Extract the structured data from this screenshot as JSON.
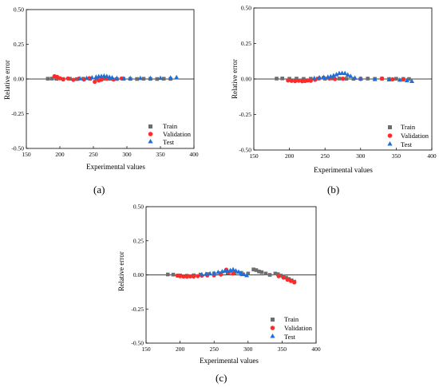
{
  "chart_data": [
    {
      "type": "scatter",
      "panel_label": "(a)",
      "xlabel": "Experimental values",
      "ylabel": "Relative error",
      "xlim": [
        150,
        400
      ],
      "ylim": [
        -0.5,
        0.5
      ],
      "xticks": [
        "150",
        "200",
        "250",
        "300",
        "350",
        "400"
      ],
      "yticks": [
        "-0.50",
        "-0.25",
        "0.00",
        "0.25",
        "0.50"
      ],
      "reference_line": 0,
      "legend_position": "bottom-right",
      "series": [
        {
          "name": "Train",
          "color": "#6d6d6d",
          "marker": "square",
          "points": [
            [
              182,
              0.002
            ],
            [
              188,
              0.003
            ],
            [
              195,
              0.001
            ],
            [
              205,
              0.0
            ],
            [
              215,
              0.002
            ],
            [
              225,
              -0.001
            ],
            [
              235,
              0.002
            ],
            [
              245,
              0.001
            ],
            [
              255,
              0.003
            ],
            [
              265,
              0.002
            ],
            [
              275,
              0.001
            ],
            [
              285,
              0.0
            ],
            [
              295,
              0.002
            ],
            [
              305,
              0.001
            ],
            [
              315,
              0.0
            ],
            [
              325,
              0.002
            ],
            [
              335,
              0.001
            ],
            [
              345,
              0.0
            ],
            [
              355,
              0.002
            ],
            [
              365,
              0.001
            ]
          ]
        },
        {
          "name": "Validation",
          "color": "#ff2a2a",
          "marker": "circle",
          "points": [
            [
              192,
              0.02
            ],
            [
              196,
              0.015
            ],
            [
              200,
              0.005
            ],
            [
              205,
              -0.003
            ],
            [
              212,
              0.004
            ],
            [
              220,
              -0.006
            ],
            [
              228,
              0.002
            ],
            [
              236,
              -0.004
            ],
            [
              244,
              0.006
            ],
            [
              252,
              -0.02
            ],
            [
              258,
              -0.01
            ],
            [
              262,
              -0.005
            ],
            [
              270,
              0.002
            ],
            [
              280,
              -0.004
            ],
            [
              292,
              0.004
            ]
          ]
        },
        {
          "name": "Test",
          "color": "#1e6fd9",
          "marker": "triangle",
          "points": [
            [
              230,
              0.004
            ],
            [
              240,
              0.006
            ],
            [
              248,
              0.01
            ],
            [
              254,
              0.015
            ],
            [
              258,
              0.018
            ],
            [
              262,
              0.02
            ],
            [
              266,
              0.022
            ],
            [
              270,
              0.02
            ],
            [
              274,
              0.014
            ],
            [
              278,
              0.01
            ],
            [
              285,
              0.006
            ],
            [
              295,
              0.004
            ],
            [
              305,
              0.005
            ],
            [
              320,
              0.006
            ],
            [
              335,
              0.006
            ],
            [
              350,
              0.007
            ],
            [
              365,
              0.009
            ],
            [
              374,
              0.012
            ]
          ]
        }
      ]
    },
    {
      "type": "scatter",
      "panel_label": "(b)",
      "xlabel": "Experimental values",
      "ylabel": "Relative error",
      "xlim": [
        150,
        400
      ],
      "ylim": [
        -0.5,
        0.5
      ],
      "xticks": [
        "150",
        "200",
        "250",
        "300",
        "350",
        "400"
      ],
      "yticks": [
        "-0.50",
        "-0.25",
        "0.00",
        "0.25",
        "0.50"
      ],
      "reference_line": 0,
      "legend_position": "bottom-right",
      "series": [
        {
          "name": "Train",
          "color": "#6d6d6d",
          "marker": "square",
          "points": [
            [
              182,
              0.003
            ],
            [
              190,
              0.004
            ],
            [
              200,
              0.002
            ],
            [
              210,
              0.003
            ],
            [
              220,
              0.001
            ],
            [
              230,
              0.002
            ],
            [
              240,
              0.003
            ],
            [
              250,
              0.002
            ],
            [
              260,
              0.004
            ],
            [
              270,
              0.003
            ],
            [
              280,
              0.002
            ],
            [
              290,
              0.001
            ],
            [
              300,
              0.002
            ],
            [
              310,
              0.003
            ],
            [
              320,
              0.001
            ],
            [
              330,
              0.002
            ],
            [
              340,
              0.0
            ],
            [
              350,
              0.002
            ],
            [
              360,
              0.001
            ],
            [
              368,
              0.0
            ]
          ]
        },
        {
          "name": "Validation",
          "color": "#ff2a2a",
          "marker": "circle",
          "points": [
            [
              198,
              -0.01
            ],
            [
              203,
              -0.013
            ],
            [
              208,
              -0.015
            ],
            [
              213,
              -0.012
            ],
            [
              218,
              -0.016
            ],
            [
              222,
              -0.014
            ],
            [
              226,
              -0.01
            ],
            [
              230,
              -0.012
            ],
            [
              236,
              -0.006
            ],
            [
              242,
              0.005
            ],
            [
              248,
              0.01
            ],
            [
              256,
              0.004
            ],
            [
              264,
              0.0
            ],
            [
              275,
              0.002
            ],
            [
              300,
              0.0
            ],
            [
              330,
              0.004
            ],
            [
              345,
              -0.002
            ],
            [
              360,
              -0.004
            ]
          ]
        },
        {
          "name": "Test",
          "color": "#1e6fd9",
          "marker": "triangle",
          "points": [
            [
              235,
              0.006
            ],
            [
              242,
              0.01
            ],
            [
              248,
              0.012
            ],
            [
              254,
              0.014
            ],
            [
              258,
              0.018
            ],
            [
              262,
              0.025
            ],
            [
              266,
              0.032
            ],
            [
              270,
              0.04
            ],
            [
              274,
              0.042
            ],
            [
              278,
              0.04
            ],
            [
              282,
              0.03
            ],
            [
              286,
              0.02
            ],
            [
              292,
              0.008
            ],
            [
              300,
              0.003
            ],
            [
              320,
              -0.002
            ],
            [
              340,
              -0.004
            ],
            [
              355,
              -0.006
            ],
            [
              365,
              -0.01
            ],
            [
              372,
              -0.015
            ]
          ]
        }
      ]
    },
    {
      "type": "scatter",
      "panel_label": "(c)",
      "xlabel": "Experimental values",
      "ylabel": "Relative error",
      "xlim": [
        150,
        400
      ],
      "ylim": [
        -0.5,
        0.5
      ],
      "xticks": [
        "150",
        "200",
        "250",
        "300",
        "350",
        "400"
      ],
      "yticks": [
        "-0.50",
        "-0.25",
        "0.00",
        "0.25",
        "0.50"
      ],
      "reference_line": 0,
      "legend_position": "bottom-right",
      "series": [
        {
          "name": "Train",
          "color": "#6d6d6d",
          "marker": "square",
          "points": [
            [
              182,
              0.003
            ],
            [
              190,
              0.002
            ],
            [
              200,
              -0.004
            ],
            [
              210,
              -0.006
            ],
            [
              220,
              -0.003
            ],
            [
              230,
              0.002
            ],
            [
              240,
              0.006
            ],
            [
              250,
              0.01
            ],
            [
              260,
              0.012
            ],
            [
              270,
              0.015
            ],
            [
              280,
              0.018
            ],
            [
              290,
              0.015
            ],
            [
              300,
              0.01
            ],
            [
              308,
              0.04
            ],
            [
              312,
              0.035
            ],
            [
              316,
              0.025
            ],
            [
              320,
              0.02
            ],
            [
              326,
              0.01
            ],
            [
              332,
              0.0
            ],
            [
              340,
              0.01
            ],
            [
              344,
              0.005
            ],
            [
              348,
              -0.005
            ],
            [
              352,
              -0.01
            ],
            [
              356,
              -0.02
            ],
            [
              360,
              -0.03
            ],
            [
              364,
              -0.04
            ],
            [
              368,
              -0.05
            ]
          ]
        },
        {
          "name": "Validation",
          "color": "#ff2a2a",
          "marker": "circle",
          "points": [
            [
              196,
              -0.005
            ],
            [
              200,
              -0.01
            ],
            [
              205,
              -0.012
            ],
            [
              210,
              -0.013
            ],
            [
              215,
              -0.011
            ],
            [
              220,
              -0.012
            ],
            [
              226,
              -0.009
            ],
            [
              232,
              -0.005
            ],
            [
              240,
              -0.004
            ],
            [
              250,
              -0.003
            ],
            [
              260,
              0.003
            ],
            [
              268,
              0.038
            ],
            [
              272,
              0.02
            ],
            [
              278,
              0.01
            ],
            [
              290,
              0.005
            ],
            [
              345,
              -0.01
            ],
            [
              352,
              -0.02
            ],
            [
              358,
              -0.035
            ],
            [
              363,
              -0.045
            ],
            [
              368,
              -0.055
            ]
          ]
        },
        {
          "name": "Test",
          "color": "#1e6fd9",
          "marker": "triangle",
          "points": [
            [
              232,
              0.003
            ],
            [
              238,
              0.006
            ],
            [
              244,
              0.01
            ],
            [
              250,
              0.012
            ],
            [
              256,
              0.02
            ],
            [
              262,
              0.025
            ],
            [
              266,
              0.03
            ],
            [
              270,
              0.028
            ],
            [
              274,
              0.034
            ],
            [
              278,
              0.04
            ],
            [
              282,
              0.03
            ],
            [
              286,
              0.022
            ],
            [
              290,
              0.01
            ],
            [
              294,
              0.005
            ],
            [
              298,
              -0.003
            ]
          ]
        }
      ]
    }
  ]
}
